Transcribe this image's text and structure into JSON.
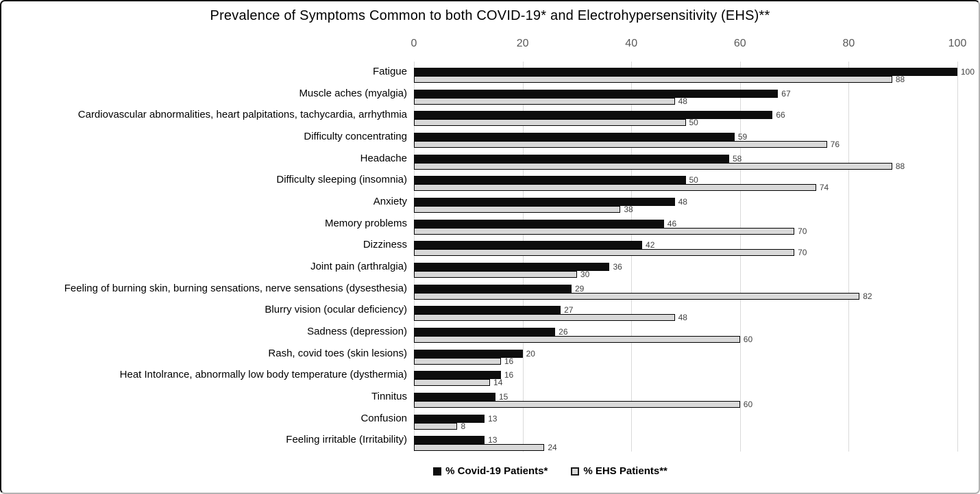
{
  "chart_data": {
    "type": "bar",
    "orientation": "horizontal",
    "title": "Prevalence of Symptoms Common to both COVID-19* and Electrohypersensitivity (EHS)**",
    "x_axis": {
      "position": "top",
      "ticks": [
        0,
        20,
        40,
        60,
        80,
        100
      ],
      "range": [
        0,
        100
      ]
    },
    "grid": true,
    "legend_position": "bottom",
    "value_labels": true,
    "categories": [
      "Fatigue",
      "Muscle aches (myalgia)",
      "Cardiovascular abnormalities, heart palpitations, tachycardia, arrhythmia",
      "Difficulty concentrating",
      "Headache",
      "Difficulty sleeping (insomnia)",
      "Anxiety",
      "Memory problems",
      "Dizziness",
      "Joint pain (arthralgia)",
      "Feeling of burning skin, burning sensations, nerve sensations (dysesthesia)",
      "Blurry vision (ocular deficiency)",
      "Sadness (depression)",
      "Rash, covid toes (skin lesions)",
      "Heat Intolrance, abnormally low body temperature (dysthermia)",
      "Tinnitus",
      "Confusion",
      "Feeling irritable (Irritability)"
    ],
    "series": [
      {
        "name": "% Covid-19 Patients*",
        "color": "#0d0d0d",
        "values": [
          100,
          67,
          66,
          59,
          58,
          50,
          48,
          46,
          42,
          36,
          29,
          27,
          26,
          20,
          16,
          15,
          13,
          13
        ]
      },
      {
        "name": "% EHS Patients**",
        "color": "#d9d9d9",
        "border_color": "#000000",
        "values": [
          88,
          48,
          50,
          76,
          88,
          74,
          38,
          70,
          70,
          30,
          82,
          48,
          60,
          16,
          14,
          60,
          8,
          24
        ]
      }
    ]
  },
  "colors": {
    "background": "#ffffff",
    "gridline": "#d9d9d9",
    "tick_label": "#595959",
    "value_label": "#404040",
    "category_label": "#000000",
    "title": "#000000"
  }
}
